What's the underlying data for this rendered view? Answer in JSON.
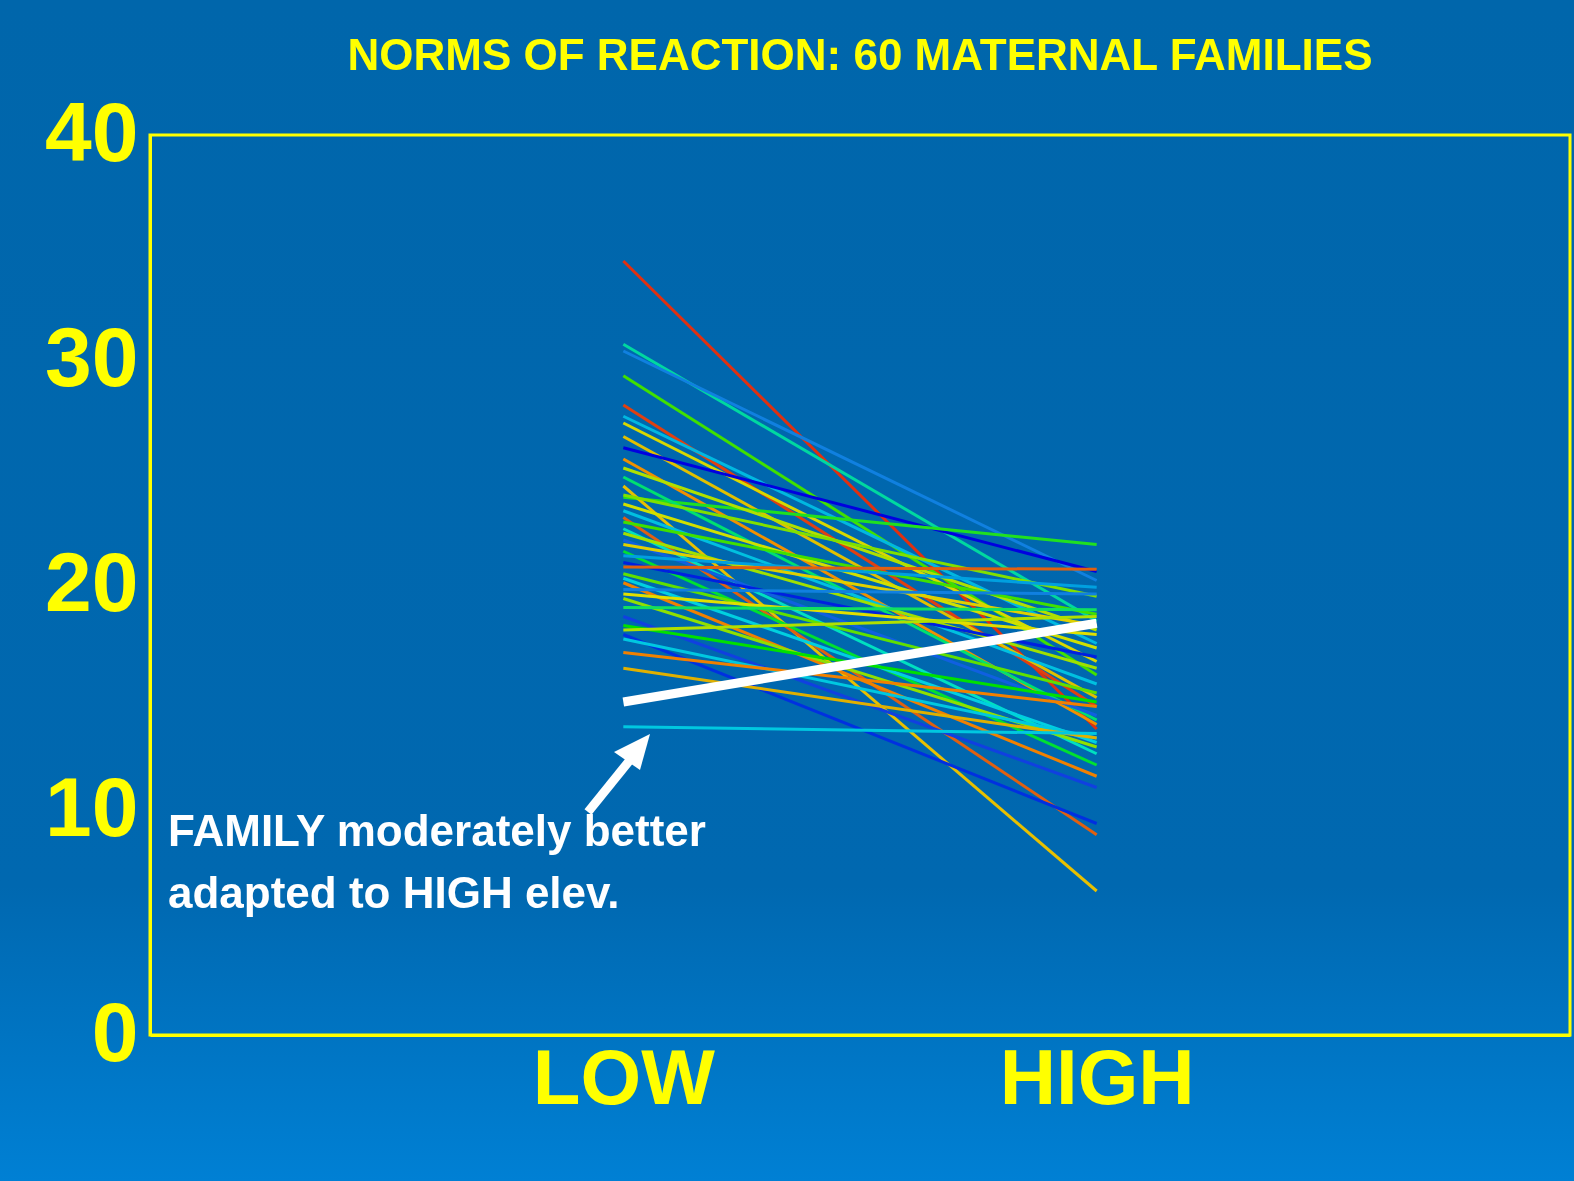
{
  "chart_data": {
    "type": "line",
    "title": "NORMS OF REACTION: 60 MATERNAL FAMILIES",
    "categories": [
      "LOW",
      "HIGH"
    ],
    "ylim": [
      0,
      40
    ],
    "yticks": [
      0,
      10,
      20,
      30,
      40
    ],
    "annotations": [
      "FAMILY moderately better adapted to HIGH elev."
    ],
    "series": [
      {
        "color": "#e03010",
        "values": [
          34.4,
          13.6
        ]
      },
      {
        "color": "#00d8a0",
        "values": [
          30.7,
          18.4
        ]
      },
      {
        "color": "#1080e0",
        "values": [
          30.4,
          20.2
        ]
      },
      {
        "color": "#40e000",
        "values": [
          29.3,
          16.0
        ]
      },
      {
        "color": "#e04010",
        "values": [
          28.0,
          14.6
        ]
      },
      {
        "color": "#00b8e0",
        "values": [
          27.5,
          17.4
        ]
      },
      {
        "color": "#d8d800",
        "values": [
          27.2,
          16.6
        ]
      },
      {
        "color": "#e0c000",
        "values": [
          26.6,
          15.0
        ]
      },
      {
        "color": "#0000e0",
        "values": [
          26.1,
          20.6
        ]
      },
      {
        "color": "#f09000",
        "values": [
          25.6,
          13.8
        ]
      },
      {
        "color": "#20e020",
        "values": [
          23.9,
          21.8
        ]
      },
      {
        "color": "#b0e000",
        "values": [
          25.2,
          18.0
        ]
      },
      {
        "color": "#e8c000",
        "values": [
          24.4,
          6.4
        ]
      },
      {
        "color": "#00e070",
        "values": [
          24.8,
          14.0
        ]
      },
      {
        "color": "#80e000",
        "values": [
          24.0,
          19.5
        ]
      },
      {
        "color": "#d0e000",
        "values": [
          23.6,
          17.2
        ]
      },
      {
        "color": "#00c0e0",
        "values": [
          23.3,
          15.6
        ]
      },
      {
        "color": "#e06010",
        "values": [
          23.0,
          8.9
        ]
      },
      {
        "color": "#40e000",
        "values": [
          22.8,
          18.7
        ]
      },
      {
        "color": "#00e0c0",
        "values": [
          22.5,
          12.5
        ]
      },
      {
        "color": "#a0e000",
        "values": [
          22.3,
          16.3
        ]
      },
      {
        "color": "#1060e0",
        "values": [
          22.0,
          14.2
        ]
      },
      {
        "color": "#e0d000",
        "values": [
          21.8,
          18.2
        ]
      },
      {
        "color": "#00e030",
        "values": [
          21.5,
          12.0
        ]
      },
      {
        "color": "#00a0e0",
        "values": [
          21.3,
          19.9
        ]
      },
      {
        "color": "#0020e0",
        "values": [
          21.0,
          16.8
        ]
      },
      {
        "color": "#e06010",
        "values": [
          20.8,
          20.7
        ]
      },
      {
        "color": "#60e000",
        "values": [
          20.5,
          15.2
        ]
      },
      {
        "color": "#00d0e0",
        "values": [
          20.3,
          13.0
        ]
      },
      {
        "color": "#f08000",
        "values": [
          20.1,
          11.5
        ]
      },
      {
        "color": "#1080e0",
        "values": [
          19.8,
          19.6
        ]
      },
      {
        "color": "#e0e000",
        "values": [
          19.6,
          17.8
        ]
      },
      {
        "color": "#90e000",
        "values": [
          19.4,
          12.8
        ]
      },
      {
        "color": "#10e060",
        "values": [
          19.0,
          18.9
        ]
      },
      {
        "color": "#1040e0",
        "values": [
          18.6,
          11.0
        ]
      },
      {
        "color": "#00e000",
        "values": [
          18.2,
          14.8
        ]
      },
      {
        "color": "#b0e000",
        "values": [
          18.0,
          18.6
        ]
      },
      {
        "color": "#0030e0",
        "values": [
          17.8,
          9.4
        ]
      },
      {
        "color": "#00c8e0",
        "values": [
          17.6,
          13.2
        ]
      },
      {
        "color": "#f08000",
        "values": [
          17.0,
          14.6
        ]
      },
      {
        "color": "#e0b000",
        "values": [
          16.3,
          13.2
        ]
      },
      {
        "color": "#00c8e0",
        "values": [
          13.7,
          13.4
        ]
      },
      {
        "color": "#ffffff",
        "values": [
          14.8,
          18.3
        ]
      }
    ]
  }
}
